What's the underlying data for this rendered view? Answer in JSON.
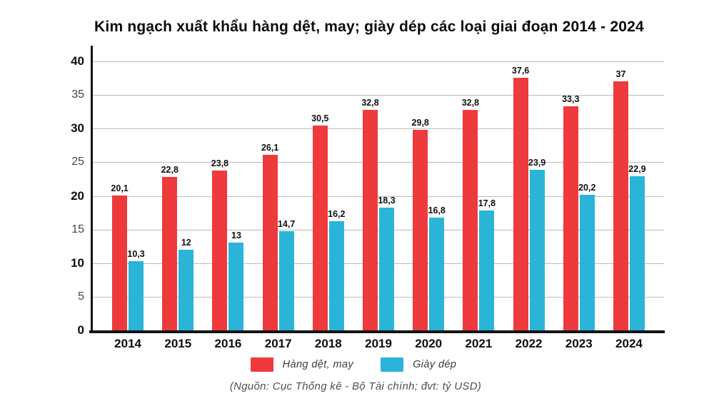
{
  "title": "Kim ngạch xuất khẩu hàng dệt, may; giày dép các loại giai đoạn 2014 - 2024",
  "source_note": "(Nguồn: Cục Thống kê - Bộ Tài chính; đvt: tỷ USD)",
  "colors": {
    "series_red": "#ee3a3c",
    "series_blue": "#2ab4d8",
    "gridline": "#bcbcbc",
    "axis": "#141414",
    "title_text": "#0b0b0b",
    "legend_text": "#3a3a3a",
    "source_text": "#4f4f4f"
  },
  "legend": [
    {
      "label": "Hàng dệt, may",
      "color": "#ee3a3c"
    },
    {
      "label": "Giày dép",
      "color": "#2ab4d8"
    }
  ],
  "y_axis": {
    "ticks": [
      0,
      5,
      10,
      15,
      20,
      25,
      30,
      35,
      40
    ],
    "major_ticks": [
      0,
      10,
      20,
      30,
      40
    ]
  },
  "chart_data": {
    "type": "bar",
    "title": "Kim ngạch xuất khẩu hàng dệt, may; giày dép các loại giai đoạn 2014 - 2024",
    "categories": [
      "2014",
      "2015",
      "2016",
      "2017",
      "2018",
      "2019",
      "2020",
      "2021",
      "2022",
      "2023",
      "2024"
    ],
    "series": [
      {
        "name": "Hàng dệt, may",
        "color": "#ee3a3c",
        "values": [
          20.1,
          22.8,
          23.8,
          26.1,
          30.5,
          32.8,
          29.8,
          32.8,
          37.6,
          33.3,
          37
        ],
        "labels": [
          "20,1",
          "22,8",
          "23,8",
          "26,1",
          "30,5",
          "32,8",
          "29,8",
          "32,8",
          "37,6",
          "33,3",
          "37"
        ]
      },
      {
        "name": "Giày dép",
        "color": "#2ab4d8",
        "values": [
          10.3,
          12,
          13,
          14.7,
          16.2,
          18.3,
          16.8,
          17.8,
          23.9,
          20.2,
          22.9
        ],
        "labels": [
          "10,3",
          "12",
          "13",
          "14,7",
          "16,2",
          "18,3",
          "16,8",
          "17,8",
          "23,9",
          "20,2",
          "22,9"
        ]
      }
    ],
    "xlabel": "",
    "ylabel": "",
    "ylim": [
      0,
      40
    ],
    "grid": true,
    "legend_position": "bottom",
    "unit": "tỷ USD"
  }
}
